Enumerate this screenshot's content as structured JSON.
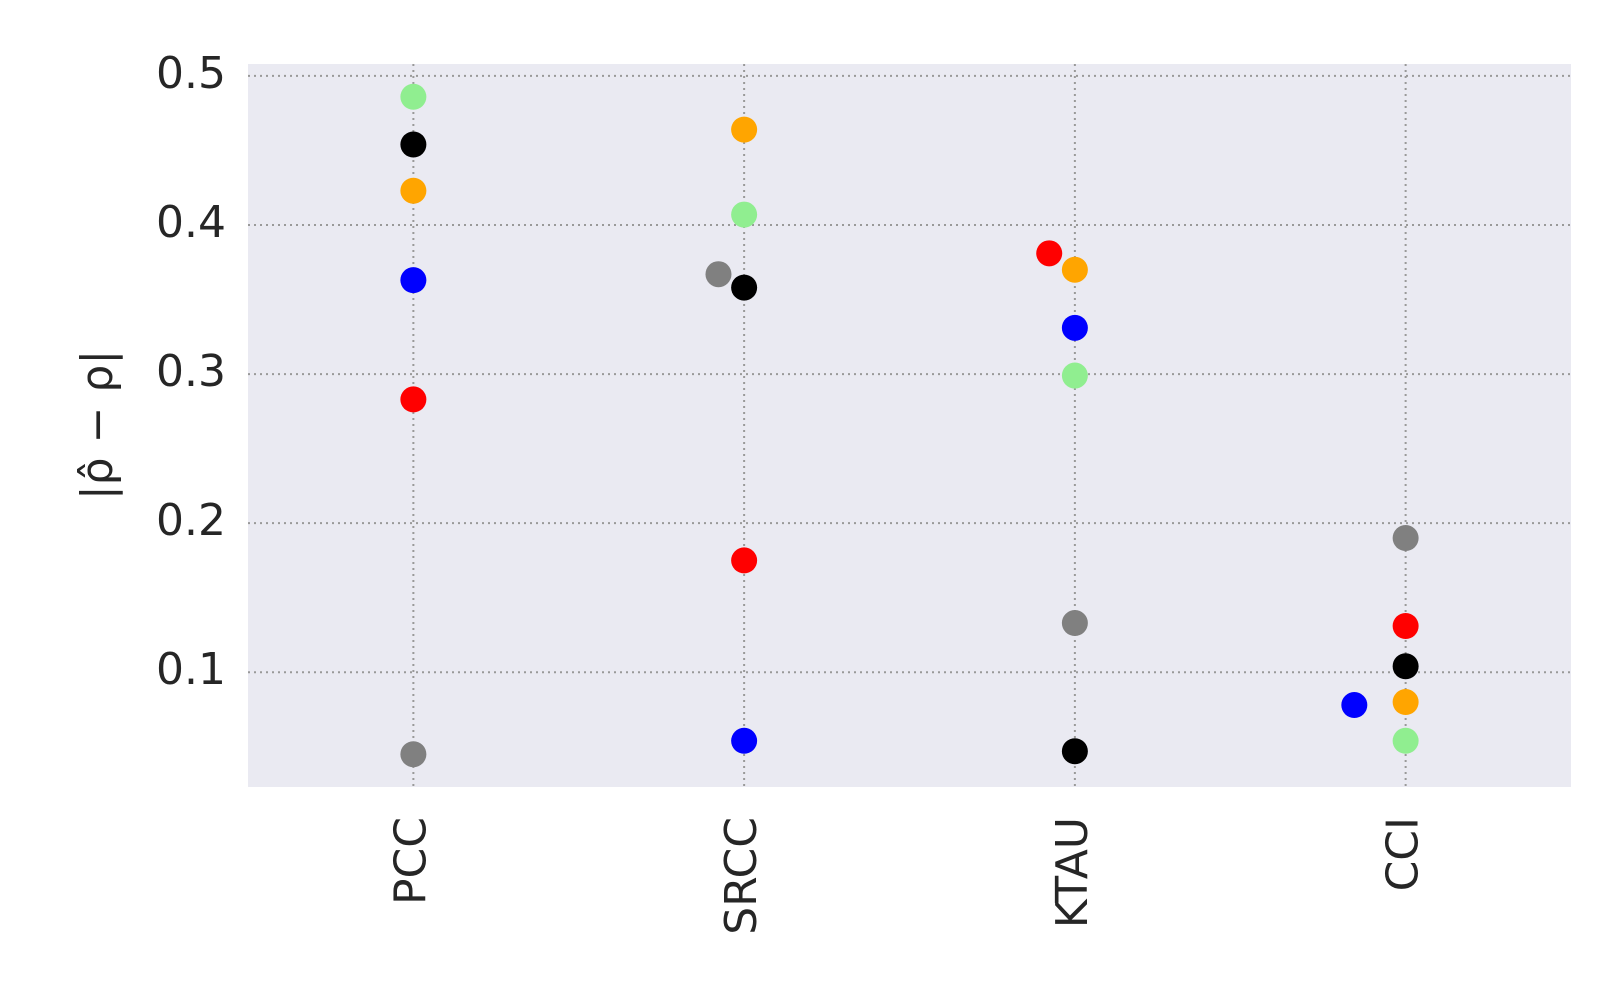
{
  "chart_data": {
    "type": "swarm",
    "y_label": "|ρ̂ − ρ|",
    "categories": [
      "PCC",
      "SRCC",
      "KTAU",
      "CCI"
    ],
    "series": [
      {
        "color": "#90ee90",
        "values": [
          0.486,
          0.407,
          0.299,
          0.054
        ]
      },
      {
        "color": "#000000",
        "values": [
          0.454,
          0.358,
          0.047,
          0.104
        ]
      },
      {
        "color": "#ffa500",
        "values": [
          0.423,
          0.464,
          0.37,
          0.08
        ]
      },
      {
        "color": "#0000ff",
        "values": [
          0.363,
          0.054,
          0.331,
          0.078
        ]
      },
      {
        "color": "#ff0000",
        "values": [
          0.283,
          0.175,
          0.381,
          0.131
        ]
      },
      {
        "color": "#808080",
        "values": [
          0.045,
          0.367,
          0.133,
          0.19
        ]
      }
    ],
    "ylim": [
      0.023,
      0.508
    ],
    "yticks": [
      0.1,
      0.2,
      0.3,
      0.4,
      0.5
    ],
    "grid": true
  }
}
